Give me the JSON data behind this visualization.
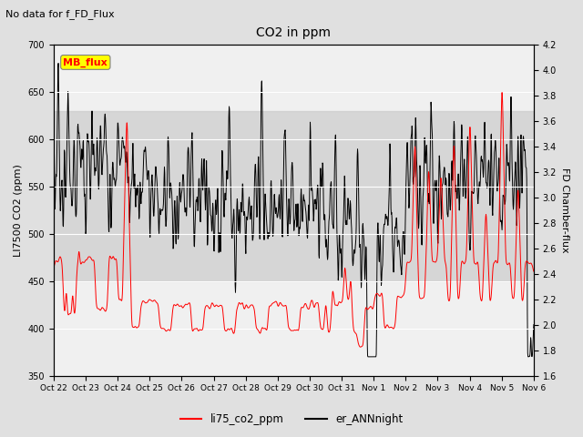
{
  "title": "CO2 in ppm",
  "suptitle": "No data for f_FD_Flux",
  "ylabel_left": "LI7500 CO2 (ppm)",
  "ylabel_right": "FD Chamber-flux",
  "ylim_left": [
    350,
    700
  ],
  "ylim_right": [
    1.6,
    4.2
  ],
  "yticks_left": [
    350,
    400,
    450,
    500,
    550,
    600,
    650,
    700
  ],
  "yticks_right": [
    1.6,
    1.8,
    2.0,
    2.2,
    2.4,
    2.6,
    2.8,
    3.0,
    3.2,
    3.4,
    3.6,
    3.8,
    4.0,
    4.2
  ],
  "xtick_labels": [
    "Oct 22",
    "Oct 23",
    "Oct 24",
    "Oct 25",
    "Oct 26",
    "Oct 27",
    "Oct 28",
    "Oct 29",
    "Oct 30",
    "Oct 31",
    "Nov 1",
    "Nov 2",
    "Nov 3",
    "Nov 4",
    "Nov 5",
    "Nov 6"
  ],
  "legend_labels": [
    "li75_co2_ppm",
    "er_ANNnight"
  ],
  "bg_color": "#e0e0e0",
  "plot_bg_color": "#f0f0f0",
  "shade_band_low": 450,
  "shade_band_high": 630,
  "shade_color": "#cccccc",
  "inset_label": "MB_flux",
  "inset_label_color": "red",
  "inset_bg_color": "yellow"
}
